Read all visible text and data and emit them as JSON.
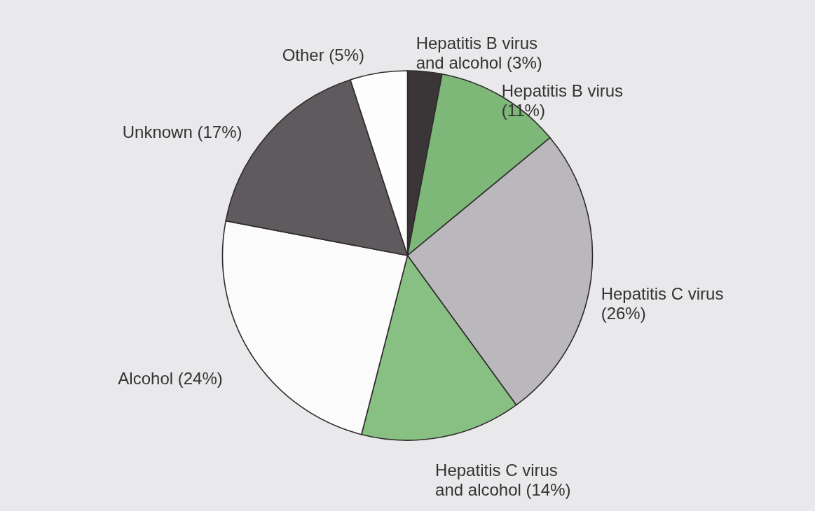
{
  "chart_data": {
    "type": "pie",
    "categories": [
      "Hepatitis B virus and alcohol (3%)",
      "Hepatitis B virus (11%)",
      "Hepatitis C virus (26%)",
      "Hepatitis C virus and alcohol (14%)",
      "Alcohol (24%)",
      "Unknown (17%)",
      "Other (5%)"
    ],
    "values": [
      3,
      11,
      26,
      14,
      24,
      17,
      5
    ],
    "colors": [
      "#3a3536",
      "#7db878",
      "#bab8bc",
      "#88c083",
      "#fbfbfb",
      "#5f5a5e",
      "#fdfdfd"
    ]
  }
}
